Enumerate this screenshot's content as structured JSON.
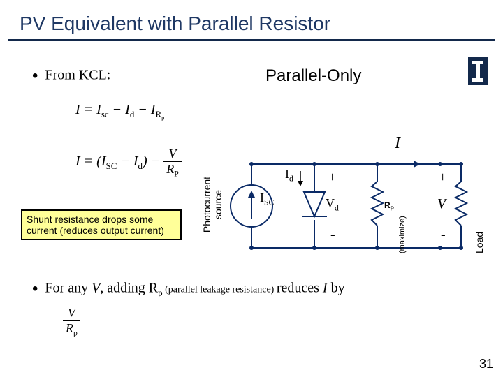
{
  "title": "PV Equivalent with Parallel Resistor",
  "bullet1": "From KCL:",
  "parallel_only": "Parallel-Only",
  "eq1_html": "I = I<sub>sc</sub> − I<sub>d</sub> − I<sub>R<sub>p</sub></sub>",
  "eq2_prefix_html": "I = (I<sub>SC</sub> − I<sub>d</sub>) − ",
  "eq2_frac_num": "V",
  "eq2_frac_den_html": "R<sub>P</sub>",
  "note_line1": "Shunt resistance drops some",
  "note_line2": "current (reduces output current)",
  "bullet2_prefix": "For any ",
  "bullet2_V": "V",
  "bullet2_mid": ",   adding R",
  "bullet2_p": "p",
  "bullet2_small": " (parallel leakage resistance) ",
  "bullet2_reduces": "reduces ",
  "bullet2_I": "I",
  "bullet2_by": "  by",
  "eq3_num": "V",
  "eq3_den_html": "R<sub>p</sub>",
  "pagenum": "31",
  "circuit": {
    "I": "I",
    "ISC_html": "I<sub>SC</sub>",
    "Id_html": "I<sub>d</sub>",
    "Vd_html": "V<sub>d</sub>",
    "Rp_html": "R<sub>P</sub>",
    "maximize": "(maximize)",
    "V": "V",
    "plus": "+",
    "minus": "-",
    "photocurrent_l1": "Photocurrent",
    "photocurrent_l2": "source",
    "load": "Load",
    "wire_color": "#0a2a66",
    "fill_color": "#ffffff"
  },
  "colors": {
    "title": "#1f3864",
    "underline": "#13294b",
    "note_bg": "#ffff99"
  }
}
